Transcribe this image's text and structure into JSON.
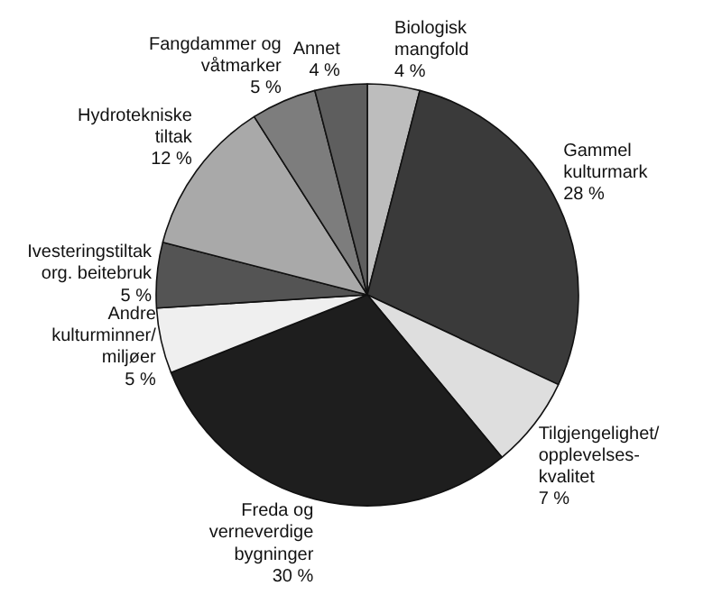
{
  "chart_data": {
    "type": "pie",
    "categories": [
      "Biologisk\nmangfold",
      "Gammel\nkulturmark",
      "Tilgjengelighet/\nopplevelses-\nkvalitet",
      "Freda og\nverneverdige\nbygninger",
      "Andre\nkulturminner/\nmiljøer",
      "Ivesteringstiltak\norg. beitebruk",
      "Hydrotekniske\ntiltak",
      "Fangdammer og\nvåtmarker",
      "Annet"
    ],
    "values": [
      4,
      28,
      7,
      30,
      5,
      5,
      12,
      5,
      4
    ],
    "value_labels": [
      "4 %",
      "28 %",
      "7 %",
      "30 %",
      "5 %",
      "5 %",
      "12 %",
      "5 %",
      "4 %"
    ],
    "colors": [
      "#bdbdbd",
      "#3a3a3a",
      "#dedede",
      "#1e1e1e",
      "#efefef",
      "#545454",
      "#a9a9a9",
      "#7d7d7d",
      "#5e5e5e"
    ]
  }
}
